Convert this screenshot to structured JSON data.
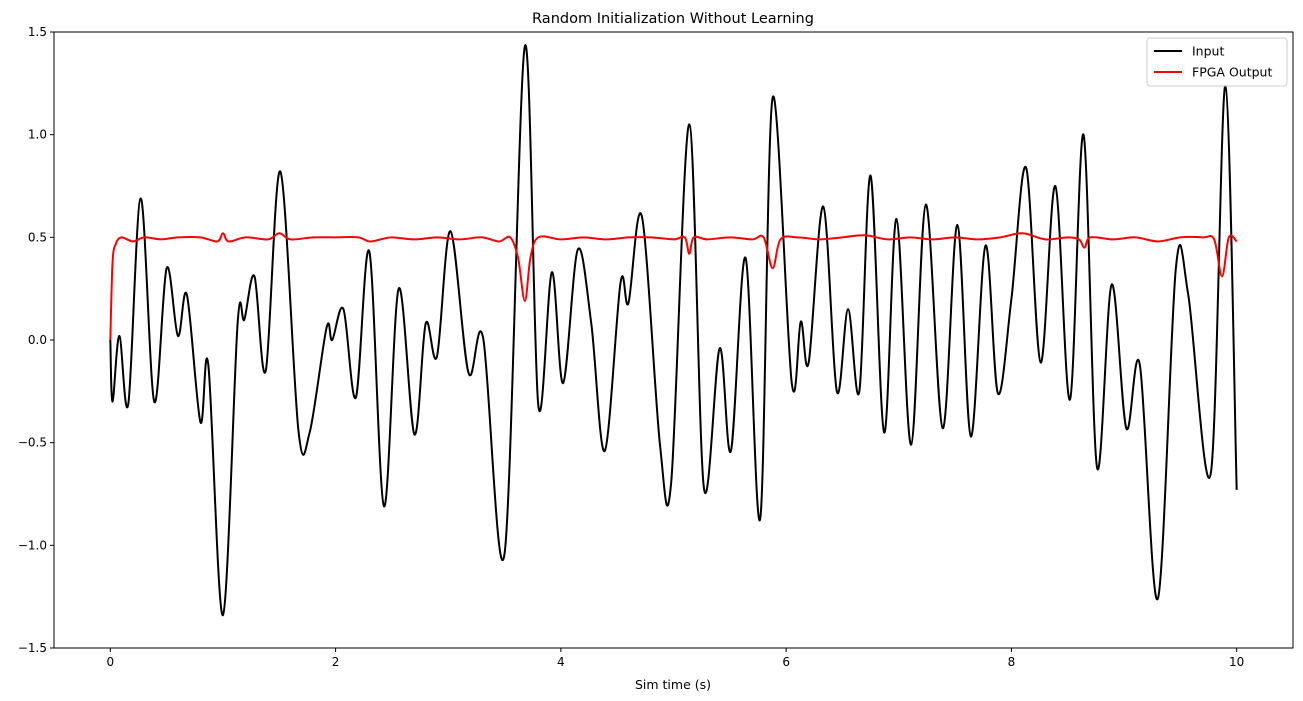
{
  "chart_data": {
    "type": "line",
    "title": "Random Initialization Without Learning",
    "xlabel": "Sim time (s)",
    "ylabel": "",
    "xlim": [
      -0.5,
      10.5
    ],
    "ylim": [
      -1.5,
      1.5
    ],
    "x_ticks": [
      0,
      2,
      4,
      6,
      8,
      10
    ],
    "x_tick_labels": [
      "0",
      "2",
      "4",
      "6",
      "8",
      "10"
    ],
    "y_ticks": [
      -1.5,
      -1.0,
      -0.5,
      0.0,
      0.5,
      1.0,
      1.5
    ],
    "y_tick_labels": [
      "−1.5",
      "−1.0",
      "−0.5",
      "0.0",
      "0.5",
      "1.0",
      "1.5"
    ],
    "grid": false,
    "legend_position": "top-right",
    "series": [
      {
        "name": "Input",
        "color": "#000000",
        "x": [
          0,
          0.02,
          0.08,
          0.16,
          0.27,
          0.39,
          0.5,
          0.6,
          0.68,
          0.8,
          0.87,
          1.0,
          1.13,
          1.19,
          1.28,
          1.38,
          1.51,
          1.67,
          1.77,
          1.92,
          1.97,
          2.07,
          2.18,
          2.3,
          2.43,
          2.56,
          2.7,
          2.8,
          2.9,
          3.02,
          3.18,
          3.31,
          3.5,
          3.68,
          3.8,
          3.92,
          4.02,
          4.15,
          4.27,
          4.39,
          4.53,
          4.6,
          4.72,
          4.88,
          4.98,
          5.14,
          5.27,
          5.41,
          5.51,
          5.64,
          5.77,
          5.88,
          6.05,
          6.13,
          6.2,
          6.33,
          6.45,
          6.55,
          6.65,
          6.75,
          6.87,
          6.98,
          7.11,
          7.24,
          7.39,
          7.52,
          7.64,
          7.77,
          7.88,
          8.0,
          8.13,
          8.26,
          8.39,
          8.52,
          8.64,
          8.76,
          8.89,
          9.02,
          9.14,
          9.3,
          9.46,
          9.57,
          9.77,
          9.9,
          10.0
        ],
        "y": [
          0,
          -0.3,
          0.02,
          -0.31,
          0.69,
          -0.3,
          0.35,
          0.02,
          0.22,
          -0.4,
          -0.12,
          -1.34,
          0.08,
          0.1,
          0.31,
          -0.15,
          0.82,
          -0.44,
          -0.45,
          0.06,
          0.0,
          0.15,
          -0.28,
          0.43,
          -0.81,
          0.25,
          -0.46,
          0.08,
          -0.08,
          0.53,
          -0.16,
          0.01,
          -1.04,
          1.43,
          -0.32,
          0.33,
          -0.21,
          0.44,
          0.08,
          -0.54,
          0.28,
          0.18,
          0.6,
          -0.51,
          -0.69,
          1.05,
          -0.72,
          -0.04,
          -0.54,
          0.4,
          -0.87,
          1.18,
          -0.21,
          0.09,
          -0.11,
          0.65,
          -0.25,
          0.15,
          -0.25,
          0.8,
          -0.45,
          0.59,
          -0.51,
          0.66,
          -0.43,
          0.56,
          -0.47,
          0.46,
          -0.26,
          0.2,
          0.84,
          -0.11,
          0.75,
          -0.29,
          1.0,
          -0.62,
          0.27,
          -0.43,
          -0.12,
          -1.26,
          0.35,
          0.22,
          -0.65,
          1.24,
          -0.73
        ]
      },
      {
        "name": "FPGA Output",
        "color": "#ff0000",
        "x": [
          0,
          0.02,
          0.05,
          0.1,
          0.2,
          0.3,
          0.45,
          0.6,
          0.8,
          0.95,
          1.0,
          1.05,
          1.2,
          1.4,
          1.5,
          1.6,
          1.8,
          2.0,
          2.2,
          2.3,
          2.4,
          2.5,
          2.7,
          2.9,
          3.1,
          3.3,
          3.45,
          3.55,
          3.62,
          3.68,
          3.73,
          3.8,
          4.0,
          4.2,
          4.4,
          4.6,
          4.8,
          5.0,
          5.1,
          5.14,
          5.18,
          5.3,
          5.5,
          5.7,
          5.8,
          5.88,
          5.95,
          6.1,
          6.3,
          6.5,
          6.7,
          6.9,
          7.1,
          7.3,
          7.5,
          7.7,
          7.9,
          8.1,
          8.3,
          8.5,
          8.6,
          8.65,
          8.7,
          8.9,
          9.1,
          9.3,
          9.5,
          9.7,
          9.8,
          9.87,
          9.93,
          10.0
        ],
        "y": [
          0,
          0.38,
          0.47,
          0.5,
          0.48,
          0.5,
          0.49,
          0.5,
          0.5,
          0.48,
          0.52,
          0.48,
          0.5,
          0.49,
          0.52,
          0.49,
          0.5,
          0.5,
          0.5,
          0.48,
          0.49,
          0.5,
          0.49,
          0.5,
          0.49,
          0.5,
          0.48,
          0.5,
          0.4,
          0.19,
          0.4,
          0.5,
          0.49,
          0.5,
          0.49,
          0.5,
          0.5,
          0.49,
          0.5,
          0.42,
          0.5,
          0.49,
          0.5,
          0.49,
          0.5,
          0.35,
          0.49,
          0.5,
          0.49,
          0.5,
          0.51,
          0.49,
          0.5,
          0.49,
          0.5,
          0.49,
          0.5,
          0.52,
          0.49,
          0.5,
          0.49,
          0.45,
          0.5,
          0.49,
          0.5,
          0.48,
          0.5,
          0.5,
          0.49,
          0.31,
          0.5,
          0.48
        ]
      }
    ]
  }
}
